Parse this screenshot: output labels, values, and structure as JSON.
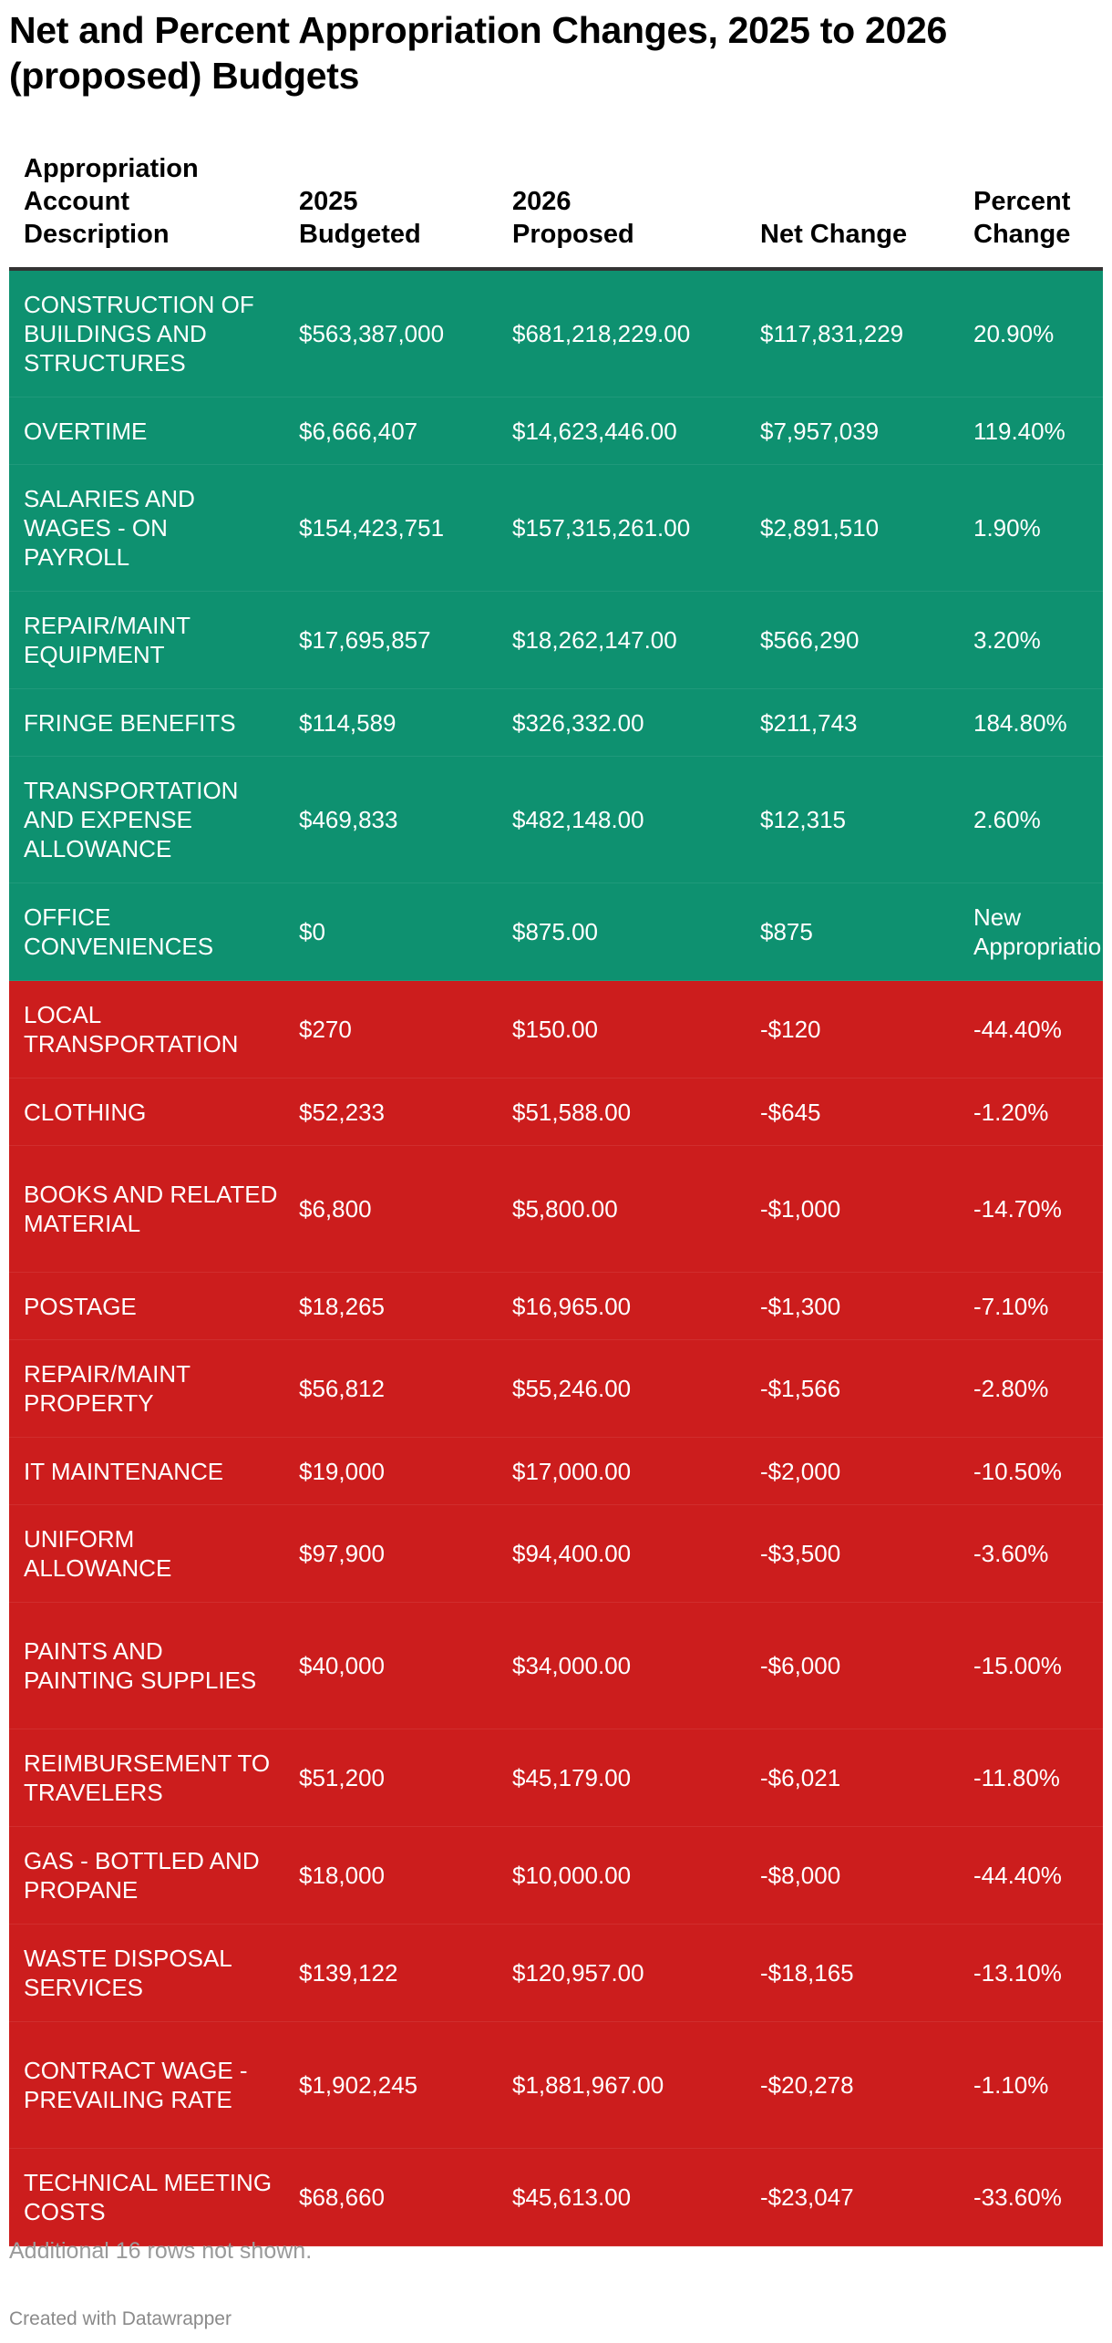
{
  "page": {
    "title": "Net and Percent Appropriation Changes, 2025 to 2026 (proposed) Budgets",
    "footnote": "Additional 16 rows not shown.",
    "credit": "Created with Datawrapper"
  },
  "colors": {
    "increase": "#0E9170",
    "decrease": "#CC1D1D",
    "header_rule": "#333333"
  },
  "chart_data": {
    "type": "table",
    "title": "Net and Percent Appropriation Changes, 2025 to 2026 (proposed) Budgets",
    "columns": [
      "Appropriation Account Description",
      "2025 Budgeted",
      "2026 Proposed",
      "Net Change",
      "Percent Change"
    ],
    "rows": [
      {
        "desc": "CONSTRUCTION OF BUILDINGS AND STRUCTURES",
        "b2025": "$563,387,000",
        "p2026": "$681,218,229.00",
        "net": "$117,831,229",
        "pct": "20.90%",
        "dir": "up",
        "lines": 3
      },
      {
        "desc": "OVERTIME",
        "b2025": "$6,666,407",
        "p2026": "$14,623,446.00",
        "net": "$7,957,039",
        "pct": "119.40%",
        "dir": "up",
        "lines": 1
      },
      {
        "desc": "SALARIES AND WAGES - ON PAYROLL",
        "b2025": "$154,423,751",
        "p2026": "$157,315,261.00",
        "net": "$2,891,510",
        "pct": "1.90%",
        "dir": "up",
        "lines": 3
      },
      {
        "desc": "REPAIR/MAINT EQUIPMENT",
        "b2025": "$17,695,857",
        "p2026": "$18,262,147.00",
        "net": "$566,290",
        "pct": "3.20%",
        "dir": "up",
        "lines": 2
      },
      {
        "desc": "FRINGE BENEFITS",
        "b2025": "$114,589",
        "p2026": "$326,332.00",
        "net": "$211,743",
        "pct": "184.80%",
        "dir": "up",
        "lines": 1
      },
      {
        "desc": "TRANSPORTATION AND EXPENSE ALLOWANCE",
        "b2025": "$469,833",
        "p2026": "$482,148.00",
        "net": "$12,315",
        "pct": "2.60%",
        "dir": "up",
        "lines": 3
      },
      {
        "desc": "OFFICE CONVENIENCES",
        "b2025": "$0",
        "p2026": "$875.00",
        "net": "$875",
        "pct": "New Appropriation",
        "dir": "up",
        "lines": 2
      },
      {
        "desc": "LOCAL TRANSPORTATION",
        "b2025": "$270",
        "p2026": "$150.00",
        "net": "-$120",
        "pct": "-44.40%",
        "dir": "down",
        "lines": 2
      },
      {
        "desc": "CLOTHING",
        "b2025": "$52,233",
        "p2026": "$51,588.00",
        "net": "-$645",
        "pct": "-1.20%",
        "dir": "down",
        "lines": 1
      },
      {
        "desc": "BOOKS AND RELATED MATERIAL",
        "b2025": "$6,800",
        "p2026": "$5,800.00",
        "net": "-$1,000",
        "pct": "-14.70%",
        "dir": "down",
        "lines": 3
      },
      {
        "desc": "POSTAGE",
        "b2025": "$18,265",
        "p2026": "$16,965.00",
        "net": "-$1,300",
        "pct": "-7.10%",
        "dir": "down",
        "lines": 1
      },
      {
        "desc": "REPAIR/MAINT PROPERTY",
        "b2025": "$56,812",
        "p2026": "$55,246.00",
        "net": "-$1,566",
        "pct": "-2.80%",
        "dir": "down",
        "lines": 2
      },
      {
        "desc": "IT MAINTENANCE",
        "b2025": "$19,000",
        "p2026": "$17,000.00",
        "net": "-$2,000",
        "pct": "-10.50%",
        "dir": "down",
        "lines": 1
      },
      {
        "desc": "UNIFORM ALLOWANCE",
        "b2025": "$97,900",
        "p2026": "$94,400.00",
        "net": "-$3,500",
        "pct": "-3.60%",
        "dir": "down",
        "lines": 2
      },
      {
        "desc": "PAINTS AND PAINTING SUPPLIES",
        "b2025": "$40,000",
        "p2026": "$34,000.00",
        "net": "-$6,000",
        "pct": "-15.00%",
        "dir": "down",
        "lines": 3
      },
      {
        "desc": "REIMBURSEMENT TO TRAVELERS",
        "b2025": "$51,200",
        "p2026": "$45,179.00",
        "net": "-$6,021",
        "pct": "-11.80%",
        "dir": "down",
        "lines": 2
      },
      {
        "desc": "GAS - BOTTLED AND PROPANE",
        "b2025": "$18,000",
        "p2026": "$10,000.00",
        "net": "-$8,000",
        "pct": "-44.40%",
        "dir": "down",
        "lines": 2
      },
      {
        "desc": "WASTE DISPOSAL SERVICES",
        "b2025": "$139,122",
        "p2026": "$120,957.00",
        "net": "-$18,165",
        "pct": "-13.10%",
        "dir": "down",
        "lines": 2
      },
      {
        "desc": "CONTRACT WAGE - PREVAILING RATE",
        "b2025": "$1,902,245",
        "p2026": "$1,881,967.00",
        "net": "-$20,278",
        "pct": "-1.10%",
        "dir": "down",
        "lines": 3
      },
      {
        "desc": "TECHNICAL MEETING COSTS",
        "b2025": "$68,660",
        "p2026": "$45,613.00",
        "net": "-$23,047",
        "pct": "-33.60%",
        "dir": "down",
        "lines": 2
      }
    ]
  }
}
